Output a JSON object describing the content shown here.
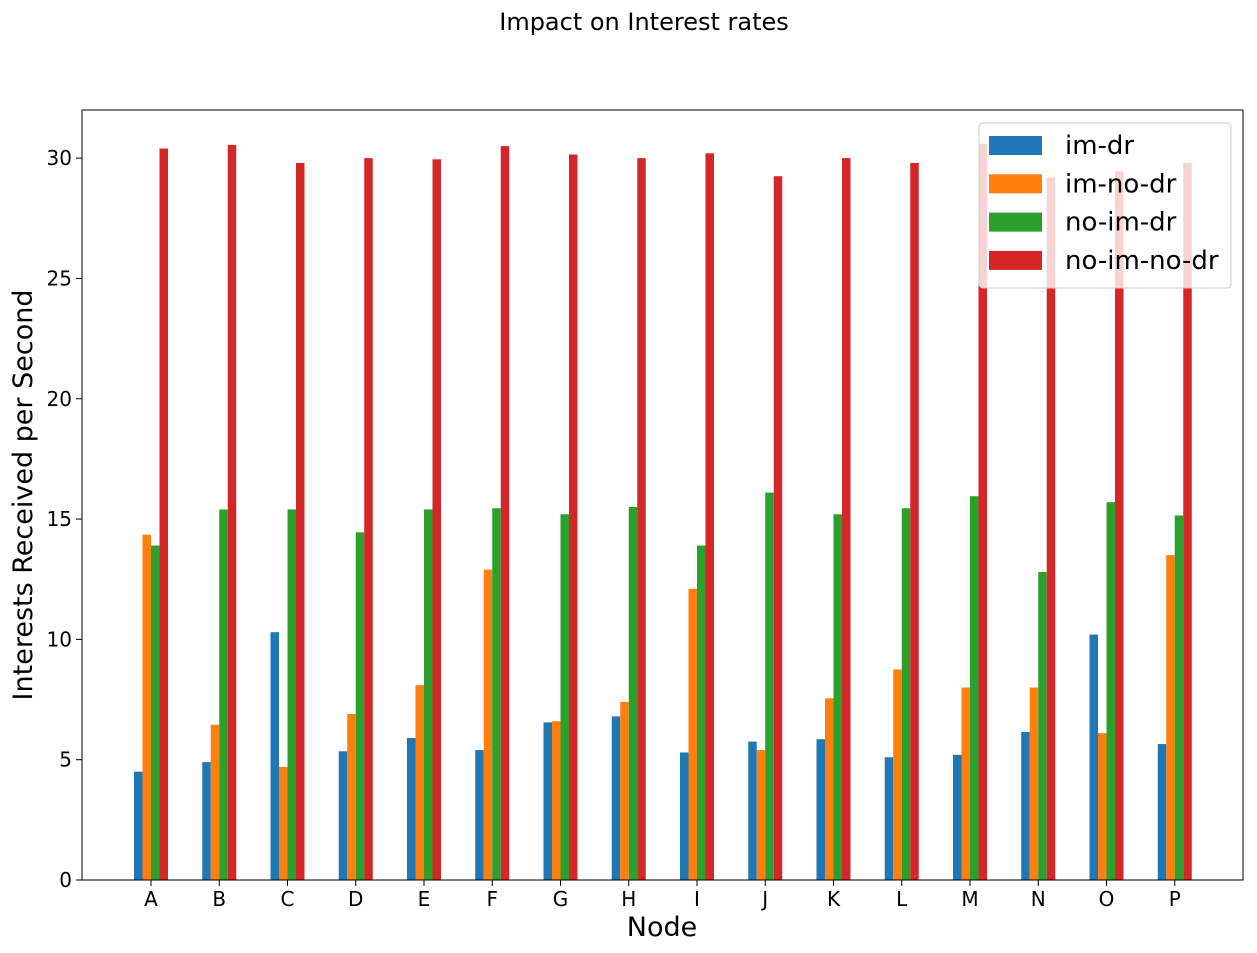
{
  "chart_data": {
    "type": "bar",
    "title": "Impact on Interest rates",
    "xlabel": "Node",
    "ylabel": "Interests Received per Second",
    "categories": [
      "A",
      "B",
      "C",
      "D",
      "E",
      "F",
      "G",
      "H",
      "I",
      "J",
      "K",
      "L",
      "M",
      "N",
      "O",
      "P"
    ],
    "ylim": [
      0,
      32
    ],
    "yticks": [
      0,
      5,
      10,
      15,
      20,
      25,
      30
    ],
    "legend_position": "top-right",
    "grid": false,
    "series": [
      {
        "name": "im-dr",
        "color": "#1f77b4",
        "values": [
          4.5,
          4.9,
          10.3,
          5.35,
          5.9,
          5.4,
          6.55,
          6.8,
          5.3,
          5.75,
          5.85,
          5.1,
          5.2,
          6.15,
          10.2,
          5.65
        ]
      },
      {
        "name": "im-no-dr",
        "color": "#ff7f0e",
        "values": [
          14.35,
          6.45,
          4.7,
          6.9,
          8.1,
          12.9,
          6.6,
          7.4,
          12.1,
          5.4,
          7.55,
          8.75,
          8.0,
          8.0,
          6.1,
          13.5
        ]
      },
      {
        "name": "no-im-dr",
        "color": "#2ca02c",
        "values": [
          13.9,
          15.4,
          15.4,
          14.45,
          15.4,
          15.45,
          15.2,
          15.5,
          13.9,
          16.1,
          15.2,
          15.45,
          15.95,
          12.8,
          15.7,
          15.15
        ]
      },
      {
        "name": "no-im-no-dr",
        "color": "#d62728",
        "values": [
          30.4,
          30.55,
          29.8,
          30.0,
          29.95,
          30.5,
          30.15,
          30.0,
          30.2,
          29.25,
          30.0,
          29.8,
          30.6,
          29.2,
          29.45,
          29.8
        ]
      }
    ]
  }
}
